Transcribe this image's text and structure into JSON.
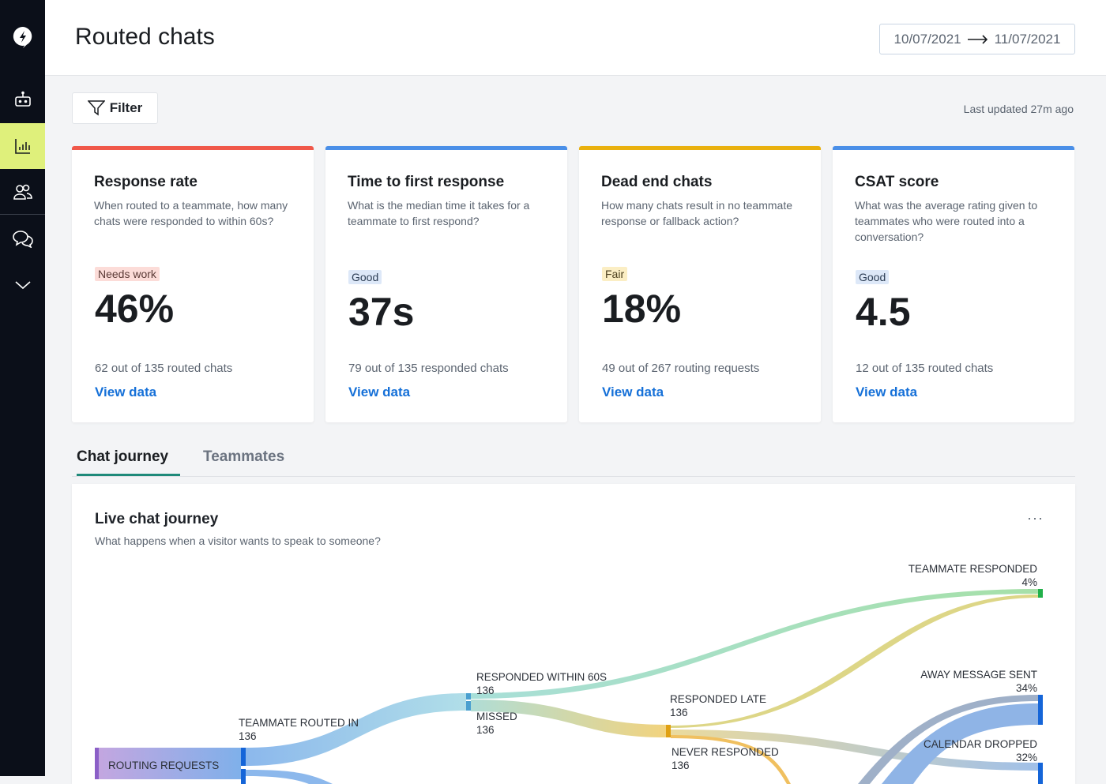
{
  "header": {
    "title": "Routed chats",
    "date_from": "10/07/2021",
    "date_to": "11/07/2021"
  },
  "sidebar": {
    "items": [
      {
        "icon": "logo-icon"
      },
      {
        "icon": "bot-icon"
      },
      {
        "icon": "chart-icon",
        "active": true
      },
      {
        "icon": "users-icon"
      },
      {
        "icon": "chats-icon"
      },
      {
        "icon": "chevron-down-icon"
      }
    ],
    "active_color": "#dff07b"
  },
  "toolbar": {
    "filter_label": "Filter",
    "last_updated": "Last updated 27m ago"
  },
  "cards": [
    {
      "title": "Response rate",
      "description": "When routed to a teammate, how many chats were responded to within 60s?",
      "badge": "Needs work",
      "value": "46%",
      "detail": "62 out of 135 routed chats",
      "link": "View data",
      "accent": "#f0584a"
    },
    {
      "title": "Time to first response",
      "description": "What is the median time it takes for a teammate to first respond?",
      "badge": "Good",
      "value": "37s",
      "detail": "79 out of 135 responded chats",
      "link": "View data",
      "accent": "#4a8fe8"
    },
    {
      "title": "Dead end chats",
      "description": "How many chats result in no teammate response or fallback action?",
      "badge": "Fair",
      "value": "18%",
      "detail": "49 out of 267 routing requests",
      "link": "View data",
      "accent": "#e9b00e"
    },
    {
      "title": "CSAT score",
      "description": "What was the average rating given to teammates who were routed into a conversation?",
      "badge": "Good",
      "value": "4.5",
      "detail": "12 out of 135 routed chats",
      "link": "View data",
      "accent": "#4a8fe8"
    }
  ],
  "tabs": [
    {
      "label": "Chat journey",
      "active": true
    },
    {
      "label": "Teammates"
    }
  ],
  "journey": {
    "title": "Live chat journey",
    "subtitle": "What happens when a visitor wants to speak to someone?",
    "more": "···",
    "nodes": [
      {
        "name": "ROUTING REQUESTS",
        "value": ""
      },
      {
        "name": "TEAMMATE ROUTED IN",
        "value": "136"
      },
      {
        "name": "RESPONDED WITHIN 60S",
        "value": "136"
      },
      {
        "name": "MISSED",
        "value": "136"
      },
      {
        "name": "RESPONDED LATE",
        "value": "136"
      },
      {
        "name": "NEVER RESPONDED",
        "value": "136"
      },
      {
        "name": "TEAMMATE RESPONDED",
        "value": "4%"
      },
      {
        "name": "AWAY MESSAGE SENT",
        "value": "34%"
      },
      {
        "name": "CALENDAR DROPPED",
        "value": "32%"
      }
    ]
  }
}
